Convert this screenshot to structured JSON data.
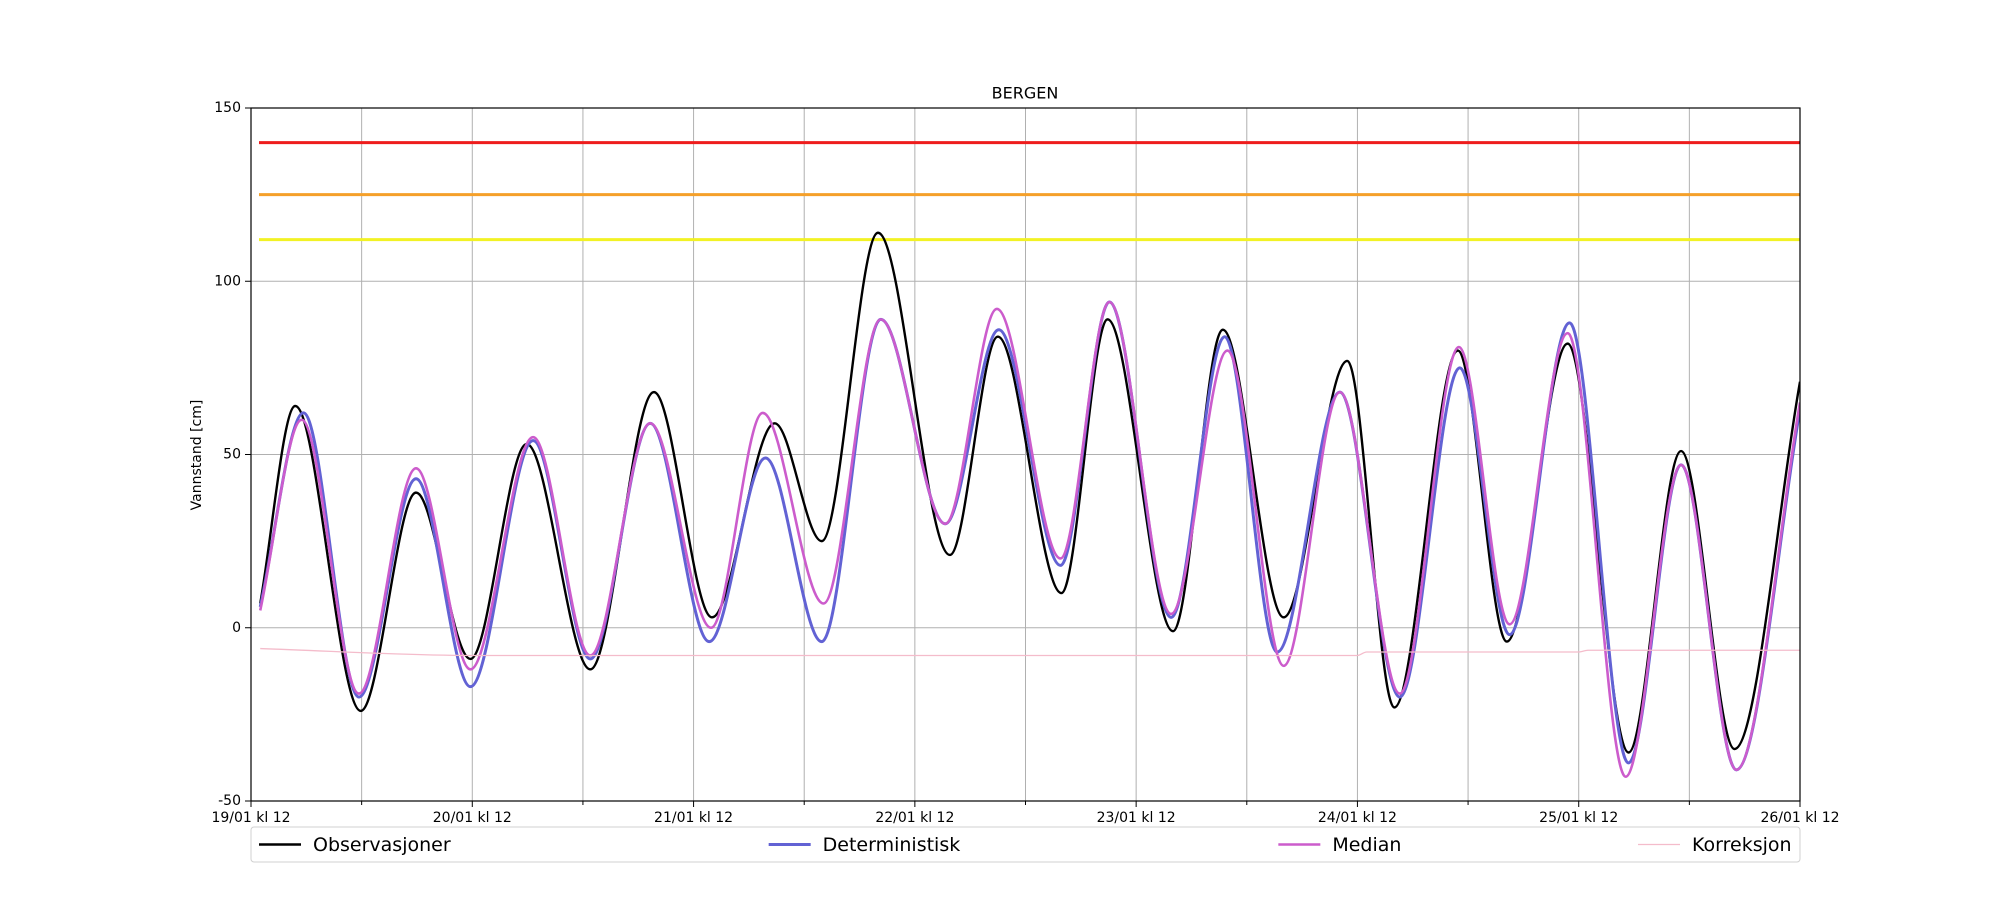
{
  "chart_data": {
    "type": "line",
    "title": "BERGEN",
    "y_label": "Vannstand [cm]",
    "xlim": [
      0,
      168
    ],
    "ylim": [
      -50,
      150
    ],
    "xticks": [
      {
        "value": 0,
        "label": "19/01 kl 12"
      },
      {
        "value": 24,
        "label": "20/01 kl 12"
      },
      {
        "value": 48,
        "label": "21/01 kl 12"
      },
      {
        "value": 72,
        "label": "22/01 kl 12"
      },
      {
        "value": 96,
        "label": "23/01 kl 12"
      },
      {
        "value": 120,
        "label": "24/01 kl 12"
      },
      {
        "value": 144,
        "label": "25/01 kl 12"
      },
      {
        "value": 168,
        "label": "26/01 kl 12"
      }
    ],
    "xticks_minor": [
      12,
      36,
      60,
      84,
      108,
      132,
      156
    ],
    "yticks": [
      -50,
      0,
      50,
      100,
      150
    ],
    "grid": true,
    "smooth": true,
    "legend": "below",
    "hlines": [
      {
        "value": 140,
        "color": "#ee1c1c"
      },
      {
        "value": 125,
        "color": "#f5a02a"
      },
      {
        "value": 112,
        "color": "#f2f224"
      }
    ],
    "series": [
      {
        "name": "Observasjoner",
        "color": "#000000",
        "width": 2.4,
        "x": [
          1,
          4.8,
          11.9,
          17.9,
          23.8,
          29.9,
          36.8,
          43.7,
          50,
          56.8,
          61.9,
          68,
          75.8,
          81,
          87.9,
          92.9,
          100,
          105.4,
          112,
          118.9,
          124,
          130.9,
          136.2,
          142.8,
          149.4,
          155.1,
          160.9,
          168
        ],
        "values": [
          7,
          64,
          -24,
          39,
          -9,
          53,
          -12,
          68,
          3,
          59,
          25,
          114,
          21,
          84,
          10,
          89,
          -1,
          86,
          3,
          77,
          -23,
          80,
          -4,
          82,
          -36,
          51,
          -35,
          71
        ]
      },
      {
        "name": "Deterministisk",
        "color": "#6262d4",
        "width": 3,
        "x": [
          1,
          5.7,
          11.7,
          17.9,
          23.8,
          30.6,
          36.8,
          43.3,
          49.7,
          55.8,
          61.9,
          68.3,
          75.3,
          81.1,
          87.8,
          93.1,
          99.8,
          105.6,
          111.3,
          118.1,
          124.6,
          131.1,
          136.5,
          143,
          149.4,
          155.1,
          161.1,
          168
        ],
        "values": [
          6,
          62,
          -20,
          43,
          -17,
          54,
          -9,
          59,
          -4,
          49,
          -4,
          89,
          30,
          86,
          18,
          94,
          3,
          84,
          -7,
          68,
          -20,
          75,
          -2,
          88,
          -39,
          47,
          -41,
          63
        ]
      },
      {
        "name": "Median",
        "color": "#cc5ccc",
        "width": 2.6,
        "x": [
          1,
          5.5,
          11.7,
          17.9,
          23.8,
          30.6,
          36.8,
          43.3,
          49.9,
          55.5,
          62.1,
          68.3,
          75.3,
          80.9,
          87.8,
          93.1,
          99.8,
          105.9,
          112,
          118.1,
          124.6,
          131,
          136.5,
          142.8,
          149.1,
          155.1,
          161.1,
          168
        ],
        "values": [
          5,
          60,
          -19,
          46,
          -12,
          55,
          -8,
          59,
          0,
          62,
          7,
          89,
          30,
          92,
          20,
          94,
          4,
          80,
          -11,
          68,
          -19,
          81,
          1,
          85,
          -43,
          47,
          -41,
          65
        ]
      },
      {
        "name": "Korreksjon",
        "color": "#f4bccb",
        "width": 1.3,
        "x": [
          1,
          24,
          72,
          120,
          121,
          144,
          145,
          168
        ],
        "values": [
          -6,
          -8,
          -8,
          -8,
          -7,
          -7,
          -6.5,
          -6.5
        ]
      }
    ]
  }
}
